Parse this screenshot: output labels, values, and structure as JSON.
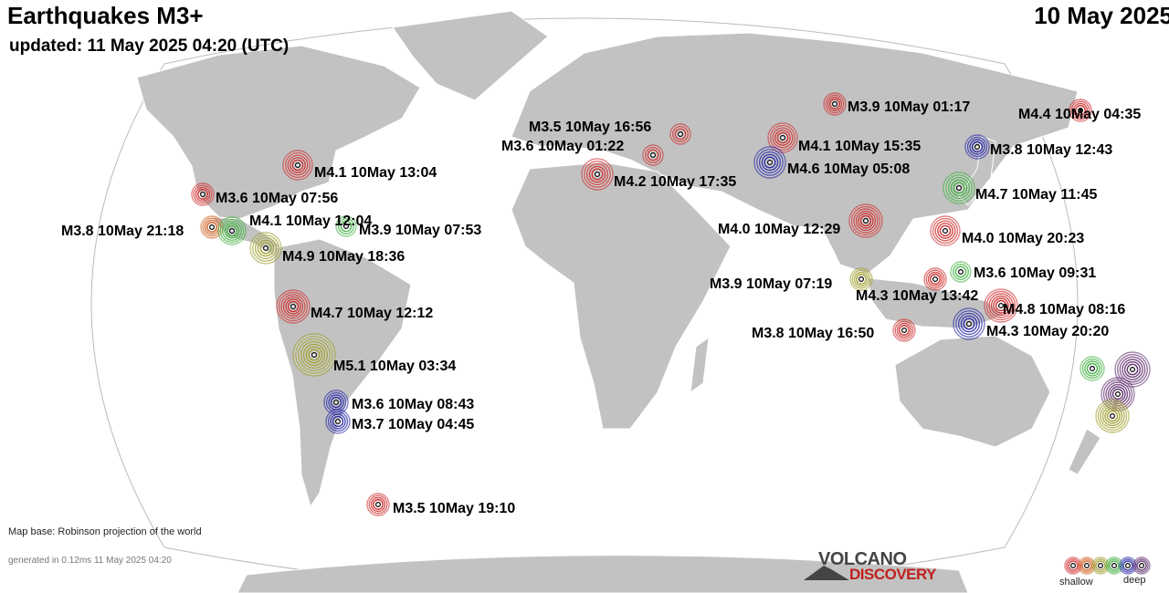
{
  "header": {
    "title": "Earthquakes M3+",
    "date": "10 May 2025",
    "updated": "updated: 11 May 2025 04:20 (UTC)"
  },
  "footer": {
    "map_base": "Map base: Robinson projection of the world",
    "generated": "generated in 0.12ms 11 May 2025 04:20"
  },
  "logo": {
    "line1": "VOLCANO",
    "line2": "DISCOVERY"
  },
  "legend": {
    "shallow_label": "shallow",
    "deep_label": "deep",
    "depth_colors": [
      "#cc2222",
      "#cc5511",
      "#999922",
      "#33aa33",
      "#1a1aa0",
      "#552266"
    ]
  },
  "colors": {
    "ocean": "#ffffff",
    "land": "#c2c2c2",
    "border": "#ffffff",
    "outline": "#bbbbbb"
  },
  "quakes": [
    {
      "label": "M3.9 10May 01:17",
      "color": "red"
    },
    {
      "label": "M4.4 10May 04:35",
      "color": "red"
    },
    {
      "label": "M3.5 10May 16:56",
      "color": "red"
    },
    {
      "label": "M3.6 10May 01:22",
      "color": "red"
    },
    {
      "label": "M4.1 10May 15:35",
      "color": "red"
    },
    {
      "label": "M3.8 10May 12:43",
      "color": "blue"
    },
    {
      "label": "M4.6 10May 05:08",
      "color": "blue"
    },
    {
      "label": "M4.2 10May 17:35",
      "color": "red"
    },
    {
      "label": "M4.7 10May 11:45",
      "color": "green"
    },
    {
      "label": "M4.1 10May 13:04",
      "color": "red"
    },
    {
      "label": "M3.6 10May 07:56",
      "color": "red"
    },
    {
      "label": "M3.8 10May 21:18",
      "color": "orange"
    },
    {
      "label": "M4.1 10May 12:04",
      "color": "green"
    },
    {
      "label": "M3.9 10May 07:53",
      "color": "green"
    },
    {
      "label": "M4.9 10May 18:36",
      "color": "olive"
    },
    {
      "label": "M4.0 10May 12:29",
      "color": "red"
    },
    {
      "label": "M4.0 10May 20:23",
      "color": "red"
    },
    {
      "label": "M3.6 10May 09:31",
      "color": "green"
    },
    {
      "label": "M3.9 10May 07:19",
      "color": "olive"
    },
    {
      "label": "M4.3 10May 13:42",
      "color": "red"
    },
    {
      "label": "M4.8 10May 08:16",
      "color": "red"
    },
    {
      "label": "M3.8 10May 16:50",
      "color": "red"
    },
    {
      "label": "M4.3 10May 20:20",
      "color": "blue"
    },
    {
      "label": "M4.7 10May 12:12",
      "color": "red"
    },
    {
      "label": "M5.1 10May 03:34",
      "color": "olive"
    },
    {
      "label": "M3.6 10May 08:43",
      "color": "blue"
    },
    {
      "label": "M3.7 10May 04:45",
      "color": "blue"
    },
    {
      "label": "M3.5 10May 19:10",
      "color": "red"
    },
    {
      "label": "",
      "color": "green"
    },
    {
      "label": "",
      "color": "purple"
    },
    {
      "label": "",
      "color": "purple"
    },
    {
      "label": "",
      "color": "olive"
    }
  ]
}
